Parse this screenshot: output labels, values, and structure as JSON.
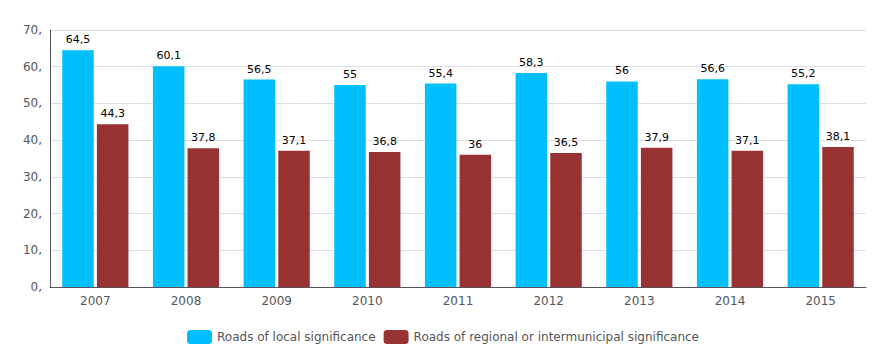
{
  "chart_data": {
    "type": "bar",
    "categories": [
      "2007",
      "2008",
      "2009",
      "2010",
      "2011",
      "2012",
      "2013",
      "2014",
      "2015"
    ],
    "series": [
      {
        "name": "Roads of local significance",
        "color": "#00BFFF",
        "values": [
          64.5,
          60.1,
          56.5,
          55.0,
          55.4,
          58.3,
          56.0,
          56.6,
          55.2
        ],
        "value_labels": [
          "64,5",
          "60,1",
          "56,5",
          "55",
          "55,4",
          "58,3",
          "56",
          "56,6",
          "55,2"
        ]
      },
      {
        "name": "Roads of regional or intermunicipal significance",
        "color": "#993333",
        "values": [
          44.3,
          37.8,
          37.1,
          36.8,
          36.0,
          36.5,
          37.9,
          37.1,
          38.1
        ],
        "value_labels": [
          "44,3",
          "37,8",
          "37,1",
          "36,8",
          "36",
          "36,5",
          "37,9",
          "37,1",
          "38,1"
        ]
      }
    ],
    "ylim": [
      0,
      70
    ],
    "yticks": [
      {
        "value": 0,
        "label": "0,"
      },
      {
        "value": 10,
        "label": "10,"
      },
      {
        "value": 20,
        "label": "20,"
      },
      {
        "value": 30,
        "label": "30,"
      },
      {
        "value": 40,
        "label": "40,"
      },
      {
        "value": 50,
        "label": "50,"
      },
      {
        "value": 60,
        "label": "60,"
      },
      {
        "value": 70,
        "label": "70,"
      }
    ],
    "grid": true,
    "legend": "bottom",
    "data_labels": true
  }
}
